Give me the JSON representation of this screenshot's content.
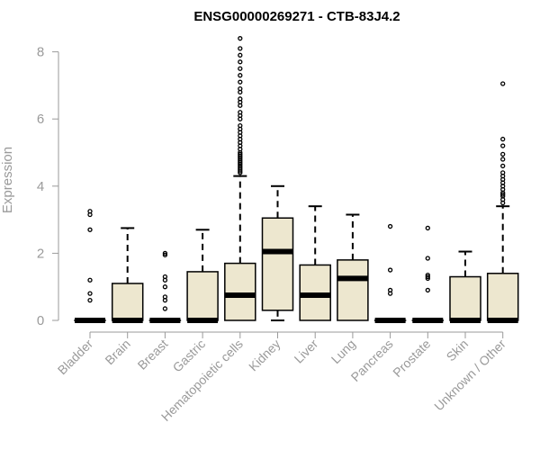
{
  "chart_data": {
    "type": "box",
    "title": "ENSG00000269271 - CTB-83J4.2",
    "xlabel": "",
    "ylabel": "Expression",
    "ylim": [
      0,
      8
    ],
    "yticks": [
      0,
      2,
      4,
      6,
      8
    ],
    "grid": false,
    "legend": "none",
    "colors": {
      "box_fill": "#ede7cf",
      "box_stroke": "#000000",
      "axis": "#9a9a9a"
    },
    "categories": [
      "Bladder",
      "Brain",
      "Breast",
      "Gastric",
      "Hematopoietic cells",
      "Kidney",
      "Liver",
      "Lung",
      "Pancreas",
      "Prostate",
      "Skin",
      "Unknown / Other"
    ],
    "boxes": [
      {
        "q1": 0,
        "median": 0,
        "q3": 0,
        "whisker_low": 0,
        "whisker_high": 0,
        "outliers": [
          3.25,
          3.15,
          2.7,
          1.2,
          0.8,
          0.6
        ]
      },
      {
        "q1": 0,
        "median": 0,
        "q3": 1.1,
        "whisker_low": 0,
        "whisker_high": 2.75,
        "outliers": []
      },
      {
        "q1": 0,
        "median": 0,
        "q3": 0,
        "whisker_low": 0,
        "whisker_high": 0,
        "outliers": [
          2.0,
          1.95,
          1.3,
          1.2,
          1.0,
          0.7,
          0.6,
          0.35
        ]
      },
      {
        "q1": 0,
        "median": 0,
        "q3": 1.45,
        "whisker_low": 0,
        "whisker_high": 2.7,
        "outliers": []
      },
      {
        "q1": 0,
        "median": 0.75,
        "q3": 1.7,
        "whisker_low": 0,
        "whisker_high": 4.3,
        "outliers": [
          8.4,
          8.1,
          7.9,
          7.7,
          7.5,
          7.3,
          7.1,
          6.9,
          6.8,
          6.6,
          6.5,
          6.4,
          6.2,
          6.1,
          6.0,
          5.8,
          5.7,
          5.6,
          5.5,
          5.4,
          5.3,
          5.2,
          5.1,
          5.0,
          4.95,
          4.9,
          4.85,
          4.8,
          4.75,
          4.7,
          4.65,
          4.6,
          4.55,
          4.5,
          4.45,
          4.4
        ]
      },
      {
        "q1": 0.3,
        "median": 2.05,
        "q3": 3.05,
        "whisker_low": 0,
        "whisker_high": 4.0,
        "outliers": []
      },
      {
        "q1": 0,
        "median": 0.75,
        "q3": 1.65,
        "whisker_low": 0,
        "whisker_high": 3.4,
        "outliers": []
      },
      {
        "q1": 0,
        "median": 1.25,
        "q3": 1.8,
        "whisker_low": 0,
        "whisker_high": 3.15,
        "outliers": []
      },
      {
        "q1": 0,
        "median": 0,
        "q3": 0,
        "whisker_low": 0,
        "whisker_high": 0,
        "outliers": [
          2.8,
          1.5,
          0.9,
          0.8
        ]
      },
      {
        "q1": 0,
        "median": 0,
        "q3": 0,
        "whisker_low": 0,
        "whisker_high": 0,
        "outliers": [
          2.75,
          1.85,
          1.35,
          1.3,
          1.25,
          0.9
        ]
      },
      {
        "q1": 0,
        "median": 0,
        "q3": 1.3,
        "whisker_low": 0,
        "whisker_high": 2.05,
        "outliers": []
      },
      {
        "q1": 0,
        "median": 0,
        "q3": 1.4,
        "whisker_low": 0,
        "whisker_high": 3.4,
        "outliers": [
          7.05,
          5.4,
          5.2,
          4.95,
          4.8,
          4.6,
          4.4,
          4.3,
          4.2,
          4.1,
          4.0,
          3.9,
          3.8,
          3.75,
          3.7,
          3.6,
          3.5
        ]
      }
    ]
  }
}
